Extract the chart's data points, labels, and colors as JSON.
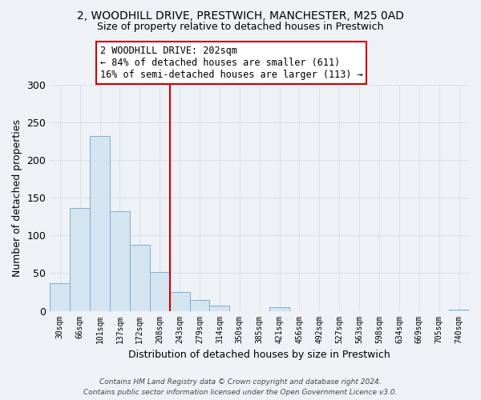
{
  "title_line1": "2, WOODHILL DRIVE, PRESTWICH, MANCHESTER, M25 0AD",
  "title_line2": "Size of property relative to detached houses in Prestwich",
  "xlabel": "Distribution of detached houses by size in Prestwich",
  "ylabel": "Number of detached properties",
  "bar_labels": [
    "30sqm",
    "66sqm",
    "101sqm",
    "137sqm",
    "172sqm",
    "208sqm",
    "243sqm",
    "279sqm",
    "314sqm",
    "350sqm",
    "385sqm",
    "421sqm",
    "456sqm",
    "492sqm",
    "527sqm",
    "563sqm",
    "598sqm",
    "634sqm",
    "669sqm",
    "705sqm",
    "740sqm"
  ],
  "bar_values": [
    37,
    136,
    232,
    132,
    88,
    51,
    25,
    14,
    7,
    0,
    0,
    5,
    0,
    0,
    0,
    0,
    0,
    0,
    0,
    0,
    2
  ],
  "bar_color": "#d4e4f0",
  "bar_edge_color": "#7aafd4",
  "ylim": [
    0,
    300
  ],
  "yticks": [
    0,
    50,
    100,
    150,
    200,
    250,
    300
  ],
  "vline_x_index": 5,
  "vline_color": "#cc0000",
  "annotation_title": "2 WOODHILL DRIVE: 202sqm",
  "annotation_line1": "← 84% of detached houses are smaller (611)",
  "annotation_line2": "16% of semi-detached houses are larger (113) →",
  "annotation_box_color": "#ffffff",
  "annotation_box_edge": "#cc0000",
  "footer_line1": "Contains HM Land Registry data © Crown copyright and database right 2024.",
  "footer_line2": "Contains public sector information licensed under the Open Government Licence v3.0.",
  "background_color": "#eef2f7",
  "grid_color": "#d8e0ea",
  "plot_bg_color": "#eef2f7"
}
